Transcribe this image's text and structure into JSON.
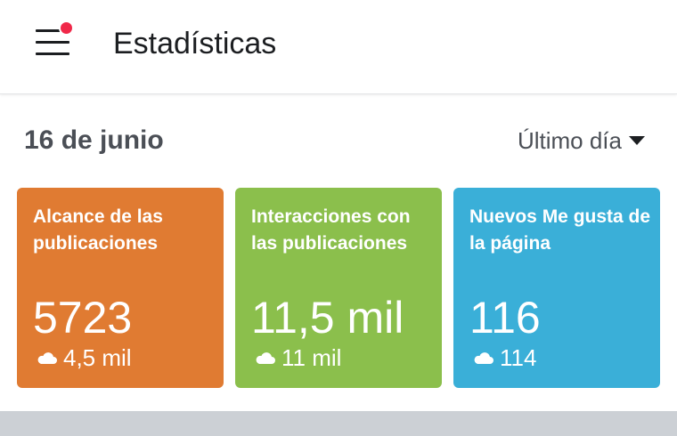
{
  "header": {
    "title": "Estadísticas",
    "menu_icon": "hamburger-menu-icon",
    "notification_color": "#f02849"
  },
  "summary": {
    "date": "16 de junio",
    "range_label": "Último día",
    "range_icon": "caret-down-icon"
  },
  "cards": [
    {
      "title": "Alcance de las publicaciones",
      "value": "5723",
      "delta": "4,5 mil",
      "color": "#e07b32",
      "delta_icon": "cloud-up-icon"
    },
    {
      "title": "Interacciones con las publicaciones",
      "value": "11,5 mil",
      "delta": "11 mil",
      "color": "#8bbf4c",
      "delta_icon": "cloud-up-icon"
    },
    {
      "title": "Nuevos Me gusta de la página",
      "value": "116",
      "delta": "114",
      "color": "#3aafd8",
      "delta_icon": "cloud-up-icon"
    }
  ]
}
